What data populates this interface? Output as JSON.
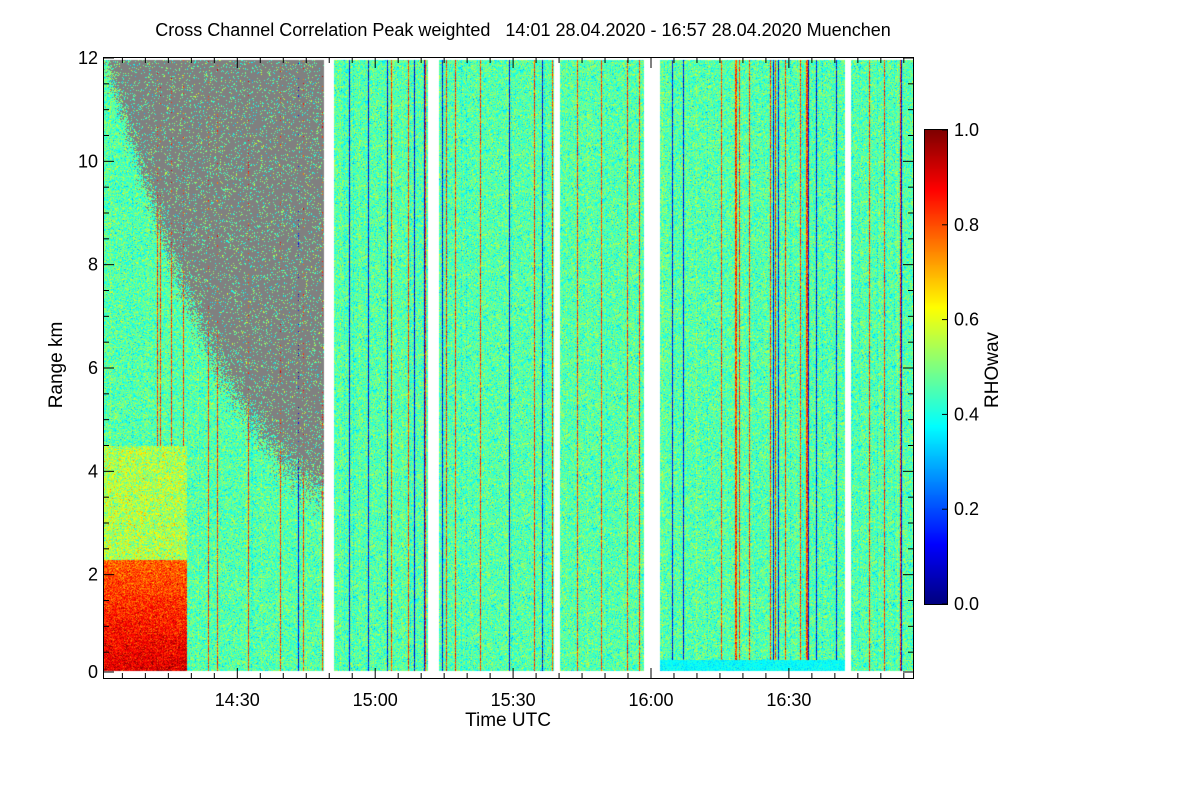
{
  "page": {
    "title": "Cross Channel Correlation Peak weighted   14:01 28.04.2020 - 16:57 28.04.2020 Muenchen"
  },
  "chart_data": {
    "type": "heatmap",
    "title": "Cross Channel Correlation Peak weighted   14:01 28.04.2020 - 16:57 28.04.2020 Muenchen",
    "xlabel": "Time UTC",
    "ylabel": "Range km",
    "colorbar_label": "RHOwav",
    "x_range_minutes": [
      841,
      1017
    ],
    "x_ticks": [
      {
        "minutes": 870,
        "label": "14:30"
      },
      {
        "minutes": 900,
        "label": "15:00"
      },
      {
        "minutes": 930,
        "label": "15:30"
      },
      {
        "minutes": 960,
        "label": "16:00"
      },
      {
        "minutes": 990,
        "label": "16:30"
      }
    ],
    "ylim": [
      0,
      12
    ],
    "y_ticks": [
      0,
      2,
      4,
      6,
      8,
      10,
      12
    ],
    "colorbar_range": [
      0.0,
      1.0
    ],
    "colorbar_ticks": [
      "0.0",
      "0.2",
      "0.4",
      "0.6",
      "0.8",
      "1.0"
    ],
    "colormap": "jet",
    "no_data_color": "#808080",
    "data_gaps_minutes": [
      [
        888.8,
        891.0
      ],
      [
        911.3,
        913.8
      ],
      [
        938.7,
        940.2
      ],
      [
        958.3,
        961.8
      ],
      [
        1002.2,
        1003.5
      ]
    ],
    "regions": [
      {
        "description": "low signal (grey) above boundary descending from ~12 km at 14:01 to ~4 km at 14:50",
        "value": null
      },
      {
        "description": "high correlation near surface 0-2 km, 14:01-14:18",
        "value": 0.85
      },
      {
        "description": "background noise level",
        "value": 0.45
      }
    ],
    "colors": {
      "low": "#00008f",
      "mid": "#40ffbf",
      "high": "#800000"
    }
  }
}
